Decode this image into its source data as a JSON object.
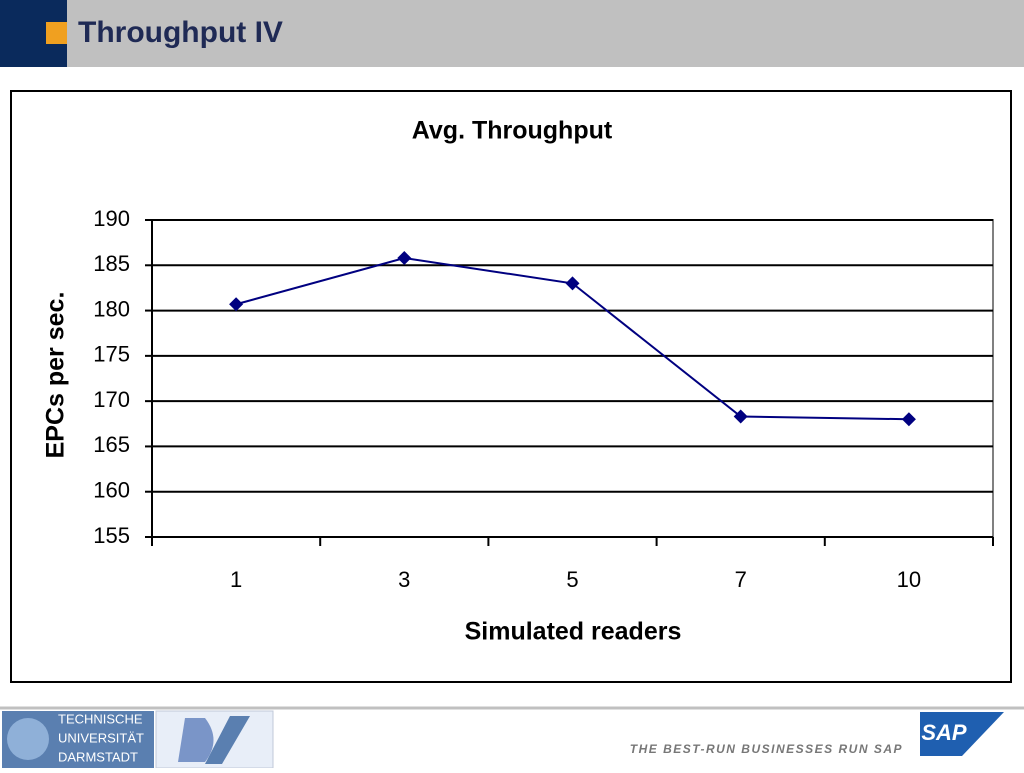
{
  "header": {
    "title": "Throughput IV"
  },
  "chart_data": {
    "type": "line",
    "title": "Avg. Throughput",
    "x_label": "Simulated readers",
    "y_label": "EPCs per sec.",
    "categories": [
      "1",
      "3",
      "5",
      "7",
      "10"
    ],
    "values": [
      180.7,
      185.8,
      183.0,
      168.3,
      168.0
    ],
    "color": "#000080",
    "ylim": [
      155,
      190
    ],
    "yticks": [
      155,
      160,
      165,
      170,
      175,
      180,
      185,
      190
    ],
    "grid": true
  },
  "footer": {
    "university": [
      "TECHNISCHE",
      "UNIVERSITÄT",
      "DARMSTADT"
    ],
    "tagline": "THE BEST-RUN BUSINESSES RUN SAP",
    "logo": "SAP"
  }
}
